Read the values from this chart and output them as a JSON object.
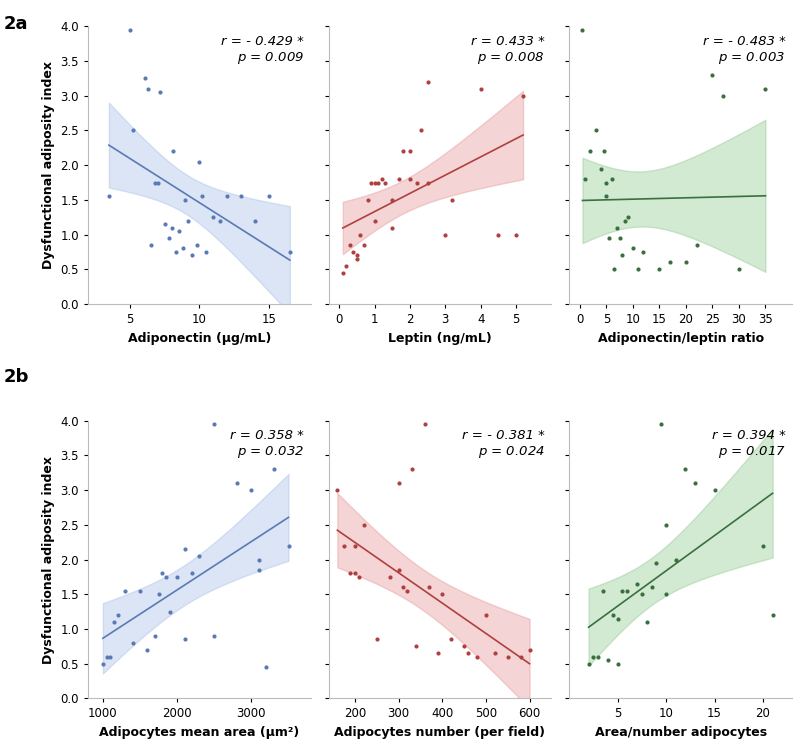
{
  "panel_a": {
    "plots": [
      {
        "x": [
          3.5,
          5.0,
          5.2,
          6.1,
          6.3,
          6.5,
          6.8,
          7.0,
          7.2,
          7.5,
          7.8,
          8.0,
          8.1,
          8.3,
          8.5,
          8.8,
          9.0,
          9.2,
          9.5,
          9.8,
          10.0,
          10.2,
          10.5,
          11.0,
          11.5,
          12.0,
          13.0,
          14.0,
          15.0,
          16.5
        ],
        "y": [
          1.55,
          3.95,
          2.5,
          3.25,
          3.1,
          0.85,
          1.75,
          1.75,
          3.05,
          1.15,
          0.95,
          1.1,
          2.2,
          0.75,
          1.05,
          0.8,
          1.5,
          1.2,
          0.7,
          0.85,
          2.05,
          1.55,
          0.75,
          1.25,
          1.2,
          1.55,
          1.55,
          1.2,
          1.55,
          0.75
        ],
        "color": "#5a7ab5",
        "r": "- 0.429",
        "p": "0.009",
        "xlabel": "Adiponectin (μg/mL)",
        "xlim": [
          2,
          18
        ],
        "xticks": [
          5,
          10,
          15
        ],
        "shade_color": "#a8bee8",
        "shade_alpha": 0.4
      },
      {
        "x": [
          0.1,
          0.2,
          0.3,
          0.4,
          0.5,
          0.5,
          0.6,
          0.7,
          0.8,
          0.9,
          1.0,
          1.0,
          1.1,
          1.2,
          1.3,
          1.5,
          1.5,
          1.7,
          1.8,
          2.0,
          2.0,
          2.2,
          2.3,
          2.5,
          2.5,
          3.0,
          3.2,
          4.0,
          4.5,
          5.0,
          5.2
        ],
        "y": [
          0.45,
          0.55,
          0.85,
          0.75,
          0.7,
          0.65,
          1.0,
          0.85,
          1.5,
          1.75,
          1.2,
          1.75,
          1.75,
          1.8,
          1.75,
          1.5,
          1.1,
          1.8,
          2.2,
          1.8,
          2.2,
          1.75,
          2.5,
          1.75,
          3.2,
          1.0,
          1.5,
          3.1,
          1.0,
          1.0,
          3.0
        ],
        "color": "#b04040",
        "r": "0.433",
        "p": "0.008",
        "xlabel": "Leptin (ng/mL)",
        "xlim": [
          -0.3,
          6
        ],
        "xticks": [
          0,
          1,
          2,
          3,
          4,
          5
        ],
        "shade_color": "#e8a0a0",
        "shade_alpha": 0.45
      },
      {
        "x": [
          0.5,
          1.0,
          2.0,
          3.0,
          4.0,
          4.5,
          5.0,
          5.0,
          5.5,
          6.0,
          6.5,
          7.0,
          7.5,
          8.0,
          8.5,
          9.0,
          10.0,
          11.0,
          12.0,
          15.0,
          17.0,
          20.0,
          22.0,
          25.0,
          27.0,
          30.0,
          35.0
        ],
        "y": [
          3.95,
          1.8,
          2.2,
          2.5,
          1.95,
          2.2,
          1.75,
          1.55,
          0.95,
          1.8,
          0.5,
          1.1,
          0.95,
          0.7,
          1.2,
          1.25,
          0.8,
          0.5,
          0.75,
          0.5,
          0.6,
          0.6,
          0.85,
          3.3,
          3.0,
          0.5,
          3.1
        ],
        "color": "#3a7040",
        "r": "- 0.483",
        "p": "0.003",
        "xlabel": "Adiponectin/leptin ratio",
        "xlim": [
          -2,
          40
        ],
        "xticks": [
          0,
          5,
          10,
          15,
          20,
          25,
          30,
          35
        ],
        "shade_color": "#90c890",
        "shade_alpha": 0.4
      }
    ],
    "ylabel": "Dysfunctional adiposity index",
    "ylim": [
      0.0,
      4.0
    ],
    "yticks": [
      0.0,
      0.5,
      1.0,
      1.5,
      2.0,
      2.5,
      3.0,
      3.5,
      4.0
    ],
    "label": "2a"
  },
  "panel_b": {
    "plots": [
      {
        "x": [
          1000,
          1050,
          1100,
          1150,
          1200,
          1300,
          1400,
          1500,
          1600,
          1700,
          1750,
          1800,
          1850,
          1900,
          2000,
          2100,
          2100,
          2200,
          2300,
          2500,
          2500,
          2800,
          3000,
          3100,
          3100,
          3200,
          3300,
          3500
        ],
        "y": [
          0.5,
          0.6,
          0.6,
          1.1,
          1.2,
          1.55,
          0.8,
          1.55,
          0.7,
          0.9,
          1.5,
          1.8,
          1.75,
          1.25,
          1.75,
          0.85,
          2.15,
          1.8,
          2.05,
          0.9,
          3.95,
          3.1,
          3.0,
          2.0,
          1.85,
          0.45,
          3.3,
          2.2
        ],
        "color": "#5a7ab5",
        "r": "0.358",
        "p": "0.032",
        "xlabel": "Adipocytes mean area (μm²)",
        "xlim": [
          800,
          3800
        ],
        "xticks": [
          1000,
          2000,
          3000
        ],
        "shade_color": "#a8bee8",
        "shade_alpha": 0.4
      },
      {
        "x": [
          160,
          175,
          190,
          200,
          200,
          210,
          220,
          250,
          280,
          300,
          300,
          310,
          320,
          330,
          340,
          360,
          370,
          390,
          400,
          420,
          450,
          460,
          480,
          500,
          520,
          550,
          580,
          600
        ],
        "y": [
          3.0,
          2.2,
          1.8,
          2.2,
          1.8,
          1.75,
          2.5,
          0.85,
          1.75,
          1.85,
          3.1,
          1.6,
          1.55,
          3.3,
          0.75,
          3.95,
          1.6,
          0.65,
          1.5,
          0.85,
          0.75,
          0.65,
          0.6,
          1.2,
          0.65,
          0.6,
          0.6,
          0.7
        ],
        "color": "#b04040",
        "r": "- 0.381",
        "p": "0.024",
        "xlabel": "Adipocytes number (per field)",
        "xlim": [
          140,
          650
        ],
        "xticks": [
          200,
          300,
          400,
          500,
          600
        ],
        "shade_color": "#e8a0a0",
        "shade_alpha": 0.45
      },
      {
        "x": [
          2.0,
          2.5,
          3.0,
          3.5,
          4.0,
          4.5,
          5.0,
          5.0,
          5.5,
          6.0,
          7.0,
          7.5,
          8.0,
          8.5,
          9.0,
          9.5,
          10.0,
          10.0,
          11.0,
          12.0,
          13.0,
          15.0,
          20.0,
          21.0
        ],
        "y": [
          0.5,
          0.6,
          0.6,
          1.55,
          0.55,
          1.2,
          1.15,
          0.5,
          1.55,
          1.55,
          1.65,
          1.5,
          1.1,
          1.6,
          1.95,
          3.95,
          1.5,
          2.5,
          2.0,
          3.3,
          3.1,
          3.0,
          2.2,
          1.2
        ],
        "color": "#3a7040",
        "r": "0.394",
        "p": "0.017",
        "xlabel": "Area/number adipocytes",
        "xlim": [
          0,
          23
        ],
        "xticks": [
          5,
          10,
          15,
          20
        ],
        "shade_color": "#90c890",
        "shade_alpha": 0.4
      }
    ],
    "ylabel": "Dysfunctional adiposity index",
    "ylim": [
      0.0,
      4.0
    ],
    "yticks": [
      0.0,
      0.5,
      1.0,
      1.5,
      2.0,
      2.5,
      3.0,
      3.5,
      4.0
    ],
    "label": "2b"
  },
  "label_fontsize": 9,
  "tick_fontsize": 8.5,
  "annot_fontsize": 9.5
}
